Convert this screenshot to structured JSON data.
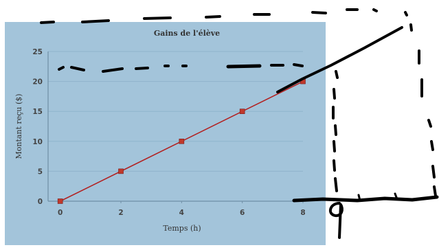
{
  "chart_data": {
    "type": "line",
    "title": "Gains de l'élève",
    "xlabel": "Temps (h)",
    "ylabel": "Montant reçu ($)",
    "x_ticks": [
      0,
      2,
      4,
      6,
      8
    ],
    "y_ticks": [
      0,
      5,
      10,
      15,
      20,
      25
    ],
    "xlim": [
      -0.4,
      8
    ],
    "ylim": [
      0,
      25
    ],
    "grid": true,
    "series": [
      {
        "x": [
          0,
          2,
          4,
          6,
          8
        ],
        "y": [
          0,
          5,
          10,
          15,
          20
        ],
        "color": "#b22222"
      }
    ]
  },
  "handwritten_annotation": {
    "label": "9",
    "extended_x": 9,
    "ink_color": "#000000"
  },
  "colors": {
    "plot_background": "#a3c4da",
    "line": "#b22222",
    "marker": "#c0392b",
    "grid": "#8fb3cc",
    "axis": "#6f8fa6"
  }
}
